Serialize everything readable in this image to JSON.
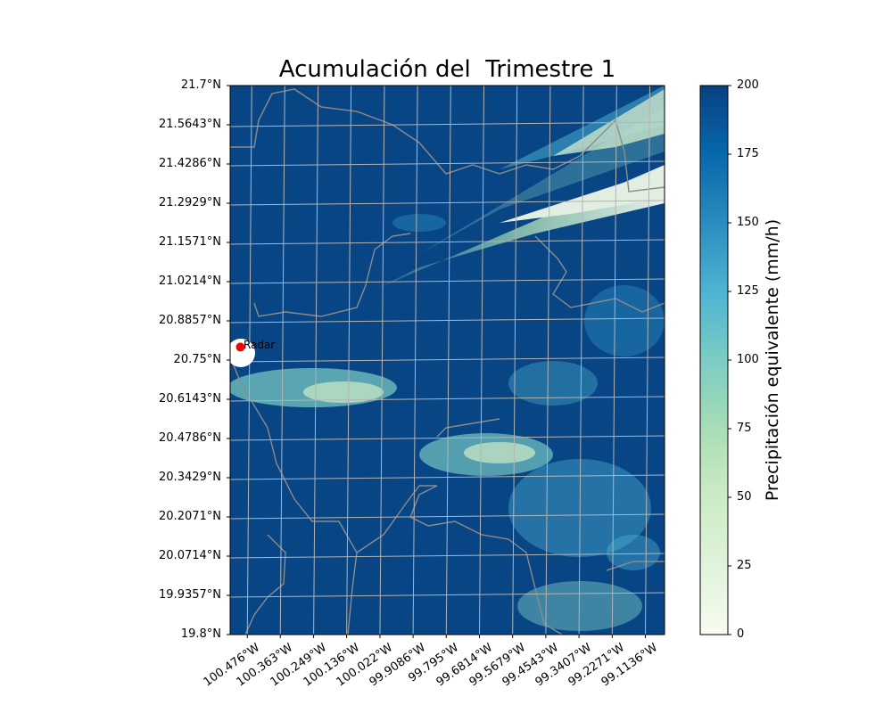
{
  "title": "Acumulación del  Trimestre 1",
  "map": {
    "lat_range": [
      19.8,
      21.7
    ],
    "lon_range": [
      -100.55,
      -99.0632
    ],
    "lat_ticks": [
      19.8,
      19.9357,
      20.0714,
      20.2071,
      20.3429,
      20.4786,
      20.6143,
      20.75,
      20.8857,
      21.0214,
      21.1571,
      21.2929,
      21.4286,
      21.5643,
      21.7
    ],
    "lat_tick_labels": [
      "19.8°N",
      "19.9357°N",
      "20.0714°N",
      "20.2071°N",
      "20.3429°N",
      "20.4786°N",
      "20.6143°N",
      "20.75°N",
      "20.8857°N",
      "21.0214°N",
      "21.1571°N",
      "21.2929°N",
      "21.4286°N",
      "21.5643°N",
      "21.7°N"
    ],
    "lon_ticks": [
      -100.476,
      -100.363,
      -100.249,
      -100.136,
      -100.022,
      -99.9086,
      -99.795,
      -99.6814,
      -99.5679,
      -99.4543,
      -99.3407,
      -99.2271,
      -99.1136
    ],
    "lon_tick_labels": [
      "100.476°W",
      "100.363°W",
      "100.249°W",
      "100.136°W",
      "100.022°W",
      "99.9086°W",
      "99.795°W",
      "99.6814°W",
      "99.5679°W",
      "99.4543°W",
      "99.3407°W",
      "99.2271°W",
      "99.1136°W"
    ],
    "gridlines": true,
    "radar_label": "Radar",
    "radar_lat": 20.795,
    "radar_lon": -100.515
  },
  "colorbar": {
    "label": "Precipitación equivalente (mm/h)",
    "min": 0,
    "max": 200,
    "ticks": [
      0,
      25,
      50,
      75,
      100,
      125,
      150,
      175,
      200
    ],
    "tick_labels": [
      "0",
      "25",
      "50",
      "75",
      "100",
      "125",
      "150",
      "175",
      "200"
    ],
    "colormap": "GnBu",
    "colors": [
      "#f7fcf0",
      "#e0f3db",
      "#ccebc5",
      "#a8ddb5",
      "#7bccc4",
      "#4eb3d3",
      "#2b8cbe",
      "#0868ac",
      "#084081"
    ]
  },
  "colors": {
    "background": "#084585",
    "border": "#8c8c8c",
    "grid": "#b4b4b4",
    "radar_marker": "#ff0000"
  }
}
